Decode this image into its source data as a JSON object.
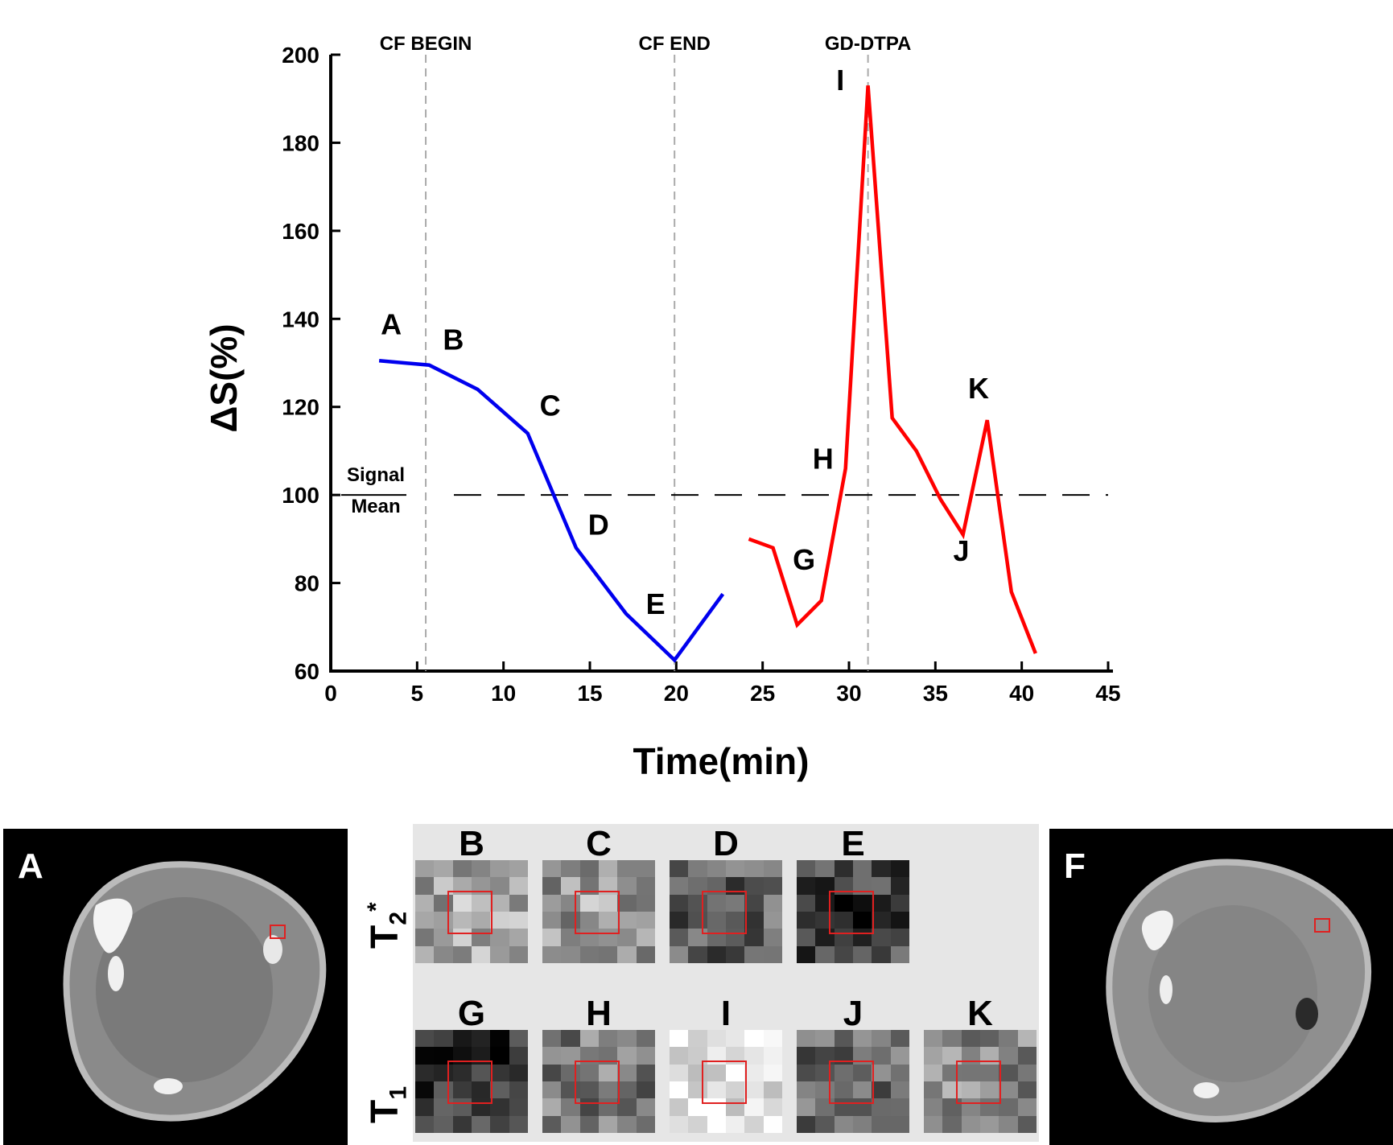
{
  "chart_data": {
    "type": "line",
    "xlabel": "Time(min)",
    "ylabel": "ΔS(%)",
    "xlim": [
      0,
      45
    ],
    "ylim": [
      60,
      200
    ],
    "xticks": [
      0,
      5,
      10,
      15,
      20,
      25,
      30,
      35,
      40,
      45
    ],
    "yticks": [
      60,
      80,
      100,
      120,
      140,
      160,
      180,
      200
    ],
    "series": [
      {
        "name": "T2*",
        "color": "#0000ee",
        "x": [
          2.8,
          5.7,
          8.5,
          11.4,
          14.2,
          17.1,
          19.9,
          22.7
        ],
        "y": [
          130.5,
          129.5,
          124,
          114,
          88,
          73,
          62.5,
          77.5
        ]
      },
      {
        "name": "T1",
        "color": "#ff0000",
        "x": [
          24.2,
          25.6,
          27.0,
          28.4,
          29.8,
          31.1,
          32.5,
          33.9,
          35.3,
          36.6,
          38.0,
          39.4,
          40.8
        ],
        "y": [
          90,
          88,
          70.5,
          76,
          106,
          193,
          117.5,
          110,
          99,
          91,
          117,
          78,
          64
        ]
      }
    ],
    "reference_line": {
      "y": 100,
      "label_line1": "Signal",
      "label_line2": "Mean"
    },
    "events": [
      {
        "x": 5.5,
        "label": "CF BEGIN"
      },
      {
        "x": 19.9,
        "label": "CF END"
      },
      {
        "x": 31.1,
        "label": "GD-DTPA"
      }
    ],
    "annotations": [
      {
        "text": "A",
        "x": 3.5,
        "y": 136.5
      },
      {
        "text": "B",
        "x": 7.1,
        "y": 133
      },
      {
        "text": "C",
        "x": 12.7,
        "y": 118
      },
      {
        "text": "D",
        "x": 15.5,
        "y": 91
      },
      {
        "text": "E",
        "x": 18.8,
        "y": 73
      },
      {
        "text": "G",
        "x": 27.4,
        "y": 83
      },
      {
        "text": "H",
        "x": 28.5,
        "y": 106
      },
      {
        "text": "I",
        "x": 29.5,
        "y": 192
      },
      {
        "text": "J",
        "x": 36.5,
        "y": 85
      },
      {
        "text": "K",
        "x": 37.5,
        "y": 122
      }
    ]
  },
  "panels": {
    "left_label": "A",
    "right_label": "F",
    "row1_label_main": "T",
    "row1_label_sub": "2",
    "row1_label_sup": "*",
    "row2_label_main": "T",
    "row2_label_sub": "1",
    "row1": [
      "B",
      "C",
      "D",
      "E"
    ],
    "row2": [
      "G",
      "H",
      "I",
      "J",
      "K"
    ],
    "roi_color": "#e02020"
  }
}
